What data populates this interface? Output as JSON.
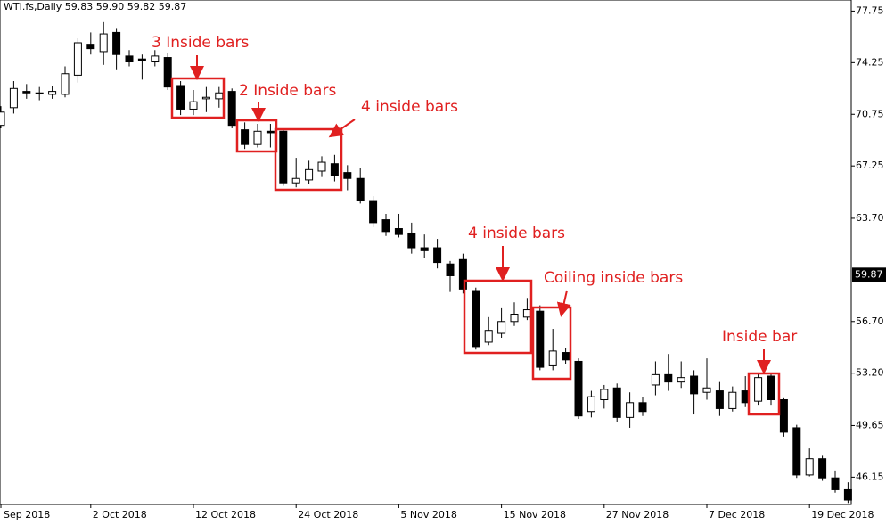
{
  "chart_data": {
    "type": "candlestick",
    "header": "WTI.fs,Daily  59.83 59.90 59.82 59.87",
    "categories": [
      "Sep 2018",
      null,
      null,
      null,
      null,
      null,
      null,
      "2 Oct 2018",
      null,
      null,
      null,
      null,
      null,
      null,
      null,
      "12 Oct 2018",
      null,
      null,
      null,
      null,
      null,
      null,
      null,
      "24 Oct 2018",
      null,
      null,
      null,
      null,
      null,
      null,
      null,
      "5 Nov 2018",
      null,
      null,
      null,
      null,
      null,
      null,
      null,
      "15 Nov 2018",
      null,
      null,
      null,
      null,
      null,
      null,
      null,
      "27 Nov 2018",
      null,
      null,
      null,
      null,
      null,
      null,
      null,
      "7 Dec 2018",
      null,
      null,
      null,
      null,
      null,
      null,
      null,
      "19 Dec 2018",
      null,
      null,
      null
    ],
    "open": [
      70.0,
      71.2,
      72.3,
      72.2,
      72.1,
      72.1,
      73.4,
      75.5,
      75.0,
      76.3,
      74.7,
      74.5,
      74.3,
      74.6,
      72.7,
      71.1,
      71.8,
      71.8,
      72.3,
      69.7,
      68.7,
      69.6,
      69.6,
      66.1,
      66.3,
      66.9,
      67.4,
      66.8,
      66.4,
      64.9,
      63.6,
      63.0,
      62.7,
      61.7,
      61.7,
      60.6,
      60.9,
      58.8,
      55.3,
      55.9,
      56.7,
      57.0,
      57.4,
      53.7,
      54.6,
      54.0,
      50.6,
      51.4,
      52.2,
      50.2,
      51.2,
      52.4,
      53.1,
      52.6,
      53.0,
      51.9,
      52.0,
      50.8,
      52.0,
      51.3,
      53.0,
      51.4,
      49.5,
      46.3,
      47.4,
      46.1,
      45.3
    ],
    "high": [
      71.3,
      73.0,
      72.8,
      72.6,
      72.7,
      74.0,
      75.9,
      76.3,
      77.0,
      76.6,
      75.1,
      74.8,
      75.1,
      74.9,
      73.0,
      72.4,
      72.6,
      72.6,
      72.5,
      70.2,
      70.1,
      70.1,
      69.8,
      67.8,
      67.6,
      67.9,
      68.0,
      67.3,
      67.1,
      65.2,
      64.0,
      64.0,
      63.4,
      62.6,
      62.3,
      60.8,
      61.3,
      59.0,
      57.0,
      57.6,
      58.0,
      58.3,
      57.8,
      56.2,
      54.9,
      54.2,
      52.0,
      52.4,
      52.5,
      51.9,
      51.6,
      54.0,
      54.5,
      54.0,
      53.4,
      54.2,
      52.6,
      52.3,
      53.0,
      53.2,
      53.2,
      51.5,
      49.7,
      48.1,
      47.6,
      46.6,
      45.8
    ],
    "low": [
      69.8,
      70.8,
      71.8,
      71.7,
      71.8,
      71.9,
      72.9,
      74.8,
      74.1,
      73.8,
      74.0,
      73.1,
      74.0,
      72.4,
      70.7,
      70.7,
      70.9,
      71.2,
      69.8,
      68.4,
      68.5,
      68.5,
      65.9,
      65.8,
      66.0,
      66.5,
      66.2,
      65.6,
      64.7,
      63.1,
      62.5,
      62.4,
      61.3,
      61.0,
      60.3,
      58.7,
      58.6,
      54.8,
      55.1,
      55.6,
      56.4,
      56.8,
      53.4,
      53.4,
      53.8,
      50.1,
      50.2,
      50.8,
      49.9,
      49.5,
      50.3,
      51.7,
      52.0,
      52.2,
      50.4,
      51.4,
      50.3,
      50.6,
      50.9,
      51.0,
      51.0,
      48.9,
      46.1,
      46.2,
      45.9,
      45.1,
      44.4
    ],
    "close": [
      70.9,
      72.5,
      72.2,
      72.2,
      72.3,
      73.5,
      75.6,
      75.2,
      76.2,
      74.8,
      74.3,
      74.4,
      74.7,
      72.6,
      71.1,
      71.6,
      71.9,
      72.2,
      70.0,
      68.7,
      69.6,
      69.5,
      66.1,
      66.4,
      67.0,
      67.5,
      66.6,
      66.4,
      64.9,
      63.4,
      62.8,
      62.6,
      61.7,
      61.5,
      60.7,
      59.8,
      58.9,
      55.0,
      56.1,
      56.7,
      57.2,
      57.5,
      53.6,
      54.7,
      54.1,
      50.3,
      51.6,
      52.1,
      50.2,
      51.2,
      50.6,
      53.1,
      52.6,
      52.9,
      51.8,
      52.2,
      50.8,
      51.9,
      51.2,
      52.9,
      51.4,
      49.2,
      46.3,
      47.4,
      46.1,
      45.3,
      44.6
    ],
    "up_color": "#ffffff",
    "down_color": "#000000",
    "ylim": [
      44.3,
      78.5
    ],
    "yticks": [
      77.75,
      74.25,
      70.75,
      67.25,
      {
        "value": 63.7,
        "label": "63.70"
      },
      {
        "value": 56.7,
        "label": "56.70"
      },
      {
        "value": 53.2,
        "label": "53.20"
      },
      49.65,
      46.15
    ],
    "last_price": 59.87,
    "annotations": [
      "3 Inside bars",
      "2 Inside bars",
      "4 inside bars",
      "4 inside bars",
      "Coiling inside bars",
      "Inside bar"
    ]
  }
}
